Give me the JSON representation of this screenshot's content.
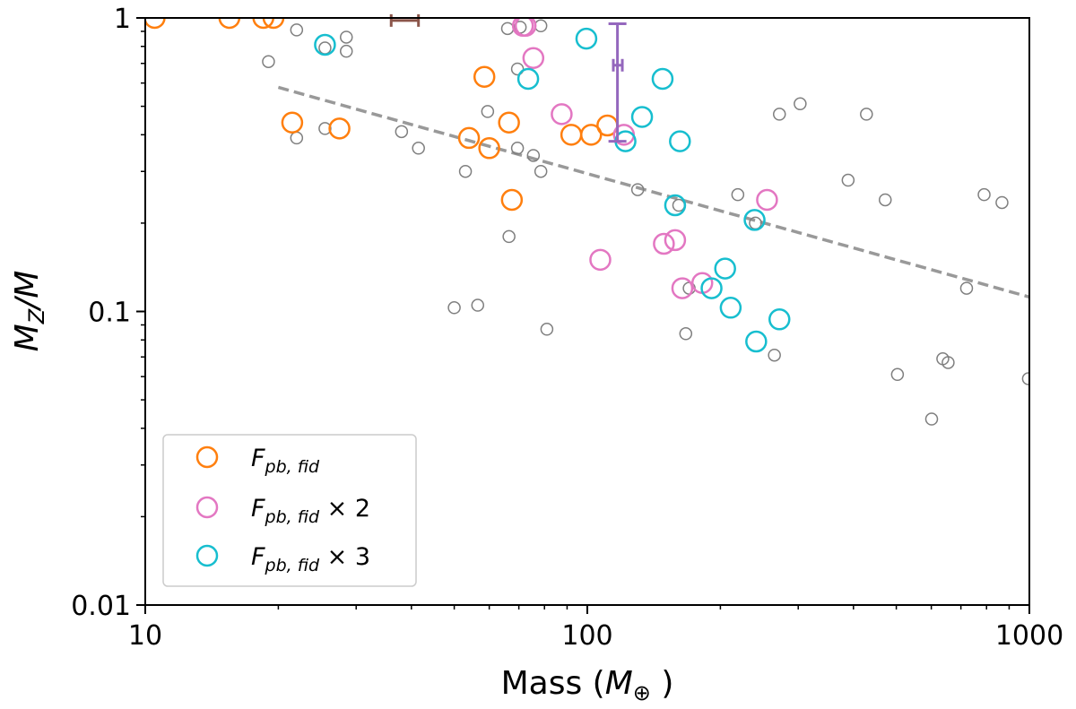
{
  "chart_data": {
    "type": "scatter",
    "xlabel": "Mass (",
    "xlabel_unit_symbol": "M",
    "xlabel_unit_sub": "⊕",
    "xlabel_close": " )",
    "ylabel_main": "M",
    "ylabel_sub": "Z",
    "ylabel_tail": "/M",
    "x_scale": "log",
    "y_scale": "log",
    "xlim": [
      10,
      1000
    ],
    "ylim": [
      0.01,
      1
    ],
    "x_ticks": [
      10,
      100,
      1000
    ],
    "x_tick_labels": [
      "10",
      "100",
      "1000"
    ],
    "y_ticks": [
      0.01,
      0.1,
      1
    ],
    "y_tick_labels": [
      "0.01",
      "0.1",
      "1"
    ],
    "grid": false,
    "legend_position": "lower-left",
    "colors": {
      "orange": "#ff7f0e",
      "pink": "#e377c2",
      "cyan": "#17becf",
      "gray": "#7f7f7f",
      "trend": "#999999",
      "brown": "#8c564b",
      "purple": "#9467bd"
    },
    "series": [
      {
        "name_main": "F",
        "name_sub": "pb, fid",
        "name_suffix": "",
        "color": "#ff7f0e",
        "marker": "open-circle-large",
        "points": [
          [
            10.5,
            1.0
          ],
          [
            15.5,
            1.0
          ],
          [
            18.5,
            1.0
          ],
          [
            19.5,
            1.0
          ],
          [
            21.5,
            0.44
          ],
          [
            27.5,
            0.42
          ],
          [
            54,
            0.39
          ],
          [
            58.5,
            0.63
          ],
          [
            60,
            0.36
          ],
          [
            66.5,
            0.44
          ],
          [
            67.5,
            0.24
          ],
          [
            92,
            0.4
          ],
          [
            102,
            0.4
          ],
          [
            111,
            0.43
          ]
        ]
      },
      {
        "name_main": "F",
        "name_sub": "pb, fid",
        "name_suffix": " × 2",
        "color": "#e377c2",
        "marker": "open-circle-large",
        "points": [
          [
            71.5,
            0.94
          ],
          [
            72.5,
            0.94
          ],
          [
            75.5,
            0.73
          ],
          [
            87.5,
            0.47
          ],
          [
            107,
            0.15
          ],
          [
            121,
            0.4
          ],
          [
            149,
            0.17
          ],
          [
            158,
            0.175
          ],
          [
            164,
            0.12
          ],
          [
            182,
            0.125
          ],
          [
            255,
            0.24
          ]
        ]
      },
      {
        "name_main": "F",
        "name_sub": "pb, fid",
        "name_suffix": " × 3",
        "color": "#17becf",
        "marker": "open-circle-large",
        "points": [
          [
            25.5,
            0.81
          ],
          [
            73.5,
            0.62
          ],
          [
            99.5,
            0.85
          ],
          [
            122,
            0.38
          ],
          [
            133,
            0.46
          ],
          [
            148,
            0.62
          ],
          [
            158,
            0.23
          ],
          [
            162,
            0.38
          ],
          [
            191,
            0.12
          ],
          [
            205,
            0.14
          ],
          [
            211,
            0.103
          ],
          [
            239,
            0.205
          ],
          [
            241,
            0.079
          ],
          [
            272,
            0.094
          ]
        ]
      },
      {
        "color": "#7f7f7f",
        "marker": "open-circle-small",
        "points": [
          [
            19,
            0.71
          ],
          [
            22,
            0.91
          ],
          [
            22,
            0.39
          ],
          [
            25.5,
            0.79
          ],
          [
            25.5,
            0.42
          ],
          [
            28.5,
            0.86
          ],
          [
            28.5,
            0.77
          ],
          [
            38,
            0.41
          ],
          [
            41.5,
            0.36
          ],
          [
            50,
            0.103
          ],
          [
            53,
            0.3
          ],
          [
            56.5,
            0.105
          ],
          [
            59.5,
            0.48
          ],
          [
            66,
            0.92
          ],
          [
            66.5,
            0.18
          ],
          [
            69.5,
            0.67
          ],
          [
            69.5,
            0.36
          ],
          [
            70.5,
            0.93
          ],
          [
            75.5,
            0.34
          ],
          [
            78.5,
            0.94
          ],
          [
            78.5,
            0.3
          ],
          [
            81,
            0.087
          ],
          [
            130,
            0.26
          ],
          [
            161,
            0.23
          ],
          [
            167,
            0.084
          ],
          [
            170,
            0.12
          ],
          [
            219,
            0.25
          ],
          [
            240,
            0.2
          ],
          [
            265,
            0.071
          ],
          [
            272,
            0.47
          ],
          [
            303,
            0.51
          ],
          [
            389,
            0.28
          ],
          [
            428,
            0.47
          ],
          [
            472,
            0.24
          ],
          [
            503,
            0.061
          ],
          [
            601,
            0.043
          ],
          [
            637,
            0.069
          ],
          [
            655,
            0.067
          ],
          [
            721,
            0.12
          ],
          [
            790,
            0.25
          ],
          [
            867,
            0.235
          ],
          [
            995,
            0.059
          ]
        ]
      }
    ],
    "trend_line": {
      "style": "dashed",
      "color": "#999999",
      "points": [
        [
          20,
          0.58
        ],
        [
          1000,
          0.112
        ]
      ]
    },
    "error_bars": [
      {
        "color": "#8c564b",
        "y": 0.98,
        "x_range": [
          36,
          41.5
        ],
        "show_center": false
      },
      {
        "color": "#9467bd",
        "x": 117,
        "y_center": 0.69,
        "y_range": [
          0.38,
          0.955
        ],
        "x_range": [
          114.5,
          120
        ],
        "show_center": true
      }
    ]
  }
}
